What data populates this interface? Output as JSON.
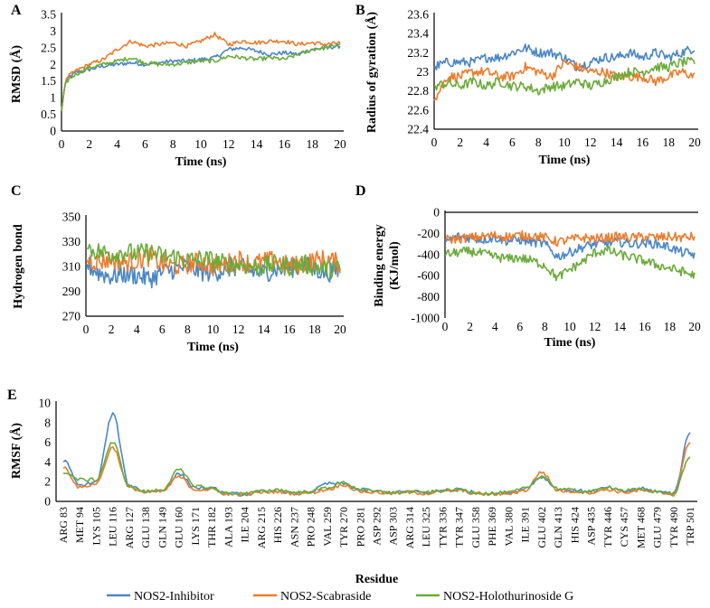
{
  "legend": {
    "entries": [
      {
        "label": "NOS2-Inhibitor",
        "color": "#4a86c8"
      },
      {
        "label": "NOS2-Scabraside",
        "color": "#ef7b2a"
      },
      {
        "label": "NOS2-Holothurinoside G",
        "color": "#6bab3a"
      }
    ]
  },
  "chart_data": [
    {
      "panel": "A",
      "type": "line",
      "xlabel": "Time (ns)",
      "ylabel": "RMSD (Å)",
      "xlim": [
        0,
        20
      ],
      "ylim": [
        0,
        3.5
      ],
      "xticks": [
        "0",
        "2",
        "4",
        "6",
        "8",
        "10",
        "12",
        "14",
        "16",
        "18",
        "20"
      ],
      "yticks": [
        "0",
        "0.5",
        "1",
        "1.5",
        "2",
        "2.5",
        "3",
        "3.5"
      ],
      "grid": false,
      "x": [
        0,
        0.25,
        0.5,
        1,
        1.5,
        2,
        3,
        4,
        5,
        6,
        7,
        8,
        9,
        10,
        11,
        12,
        13,
        14,
        15,
        16,
        17,
        18,
        19,
        20
      ],
      "series": [
        {
          "name": "NOS2-Inhibitor",
          "values": [
            0.6,
            1.4,
            1.6,
            1.75,
            1.8,
            1.85,
            1.95,
            2.0,
            2.05,
            2.0,
            2.05,
            2.1,
            2.1,
            2.15,
            2.2,
            2.45,
            2.5,
            2.4,
            2.3,
            2.35,
            2.3,
            2.45,
            2.5,
            2.55
          ]
        },
        {
          "name": "NOS2-Scabraside",
          "values": [
            0.6,
            1.45,
            1.65,
            1.8,
            1.9,
            2.0,
            2.15,
            2.45,
            2.7,
            2.55,
            2.6,
            2.65,
            2.55,
            2.7,
            2.9,
            2.6,
            2.7,
            2.65,
            2.7,
            2.7,
            2.6,
            2.65,
            2.6,
            2.65
          ]
        },
        {
          "name": "NOS2-Holothurinoside G",
          "values": [
            0.6,
            1.35,
            1.55,
            1.7,
            1.8,
            1.9,
            2.0,
            2.1,
            2.2,
            2.05,
            2.0,
            2.0,
            2.05,
            2.1,
            2.1,
            2.25,
            2.2,
            2.15,
            2.2,
            2.15,
            2.3,
            2.45,
            2.5,
            2.6
          ]
        }
      ]
    },
    {
      "panel": "B",
      "type": "line",
      "xlabel": "Time (ns)",
      "ylabel": "Radius of gyration (Å)",
      "xlim": [
        0,
        20
      ],
      "ylim": [
        22.4,
        23.6
      ],
      "xticks": [
        "0",
        "2",
        "4",
        "6",
        "8",
        "10",
        "12",
        "14",
        "16",
        "18",
        "20"
      ],
      "yticks": [
        "22.4",
        "22.6",
        "22.8",
        "23",
        "23.2",
        "23.4",
        "23.6"
      ],
      "grid": false,
      "x": [
        0,
        1,
        2,
        3,
        4,
        5,
        6,
        7,
        8,
        9,
        10,
        11,
        12,
        13,
        14,
        15,
        16,
        17,
        18,
        19,
        20
      ],
      "series": [
        {
          "name": "NOS2-Inhibitor",
          "values": [
            23.05,
            23.1,
            23.1,
            23.1,
            23.15,
            23.15,
            23.2,
            23.25,
            23.2,
            23.2,
            23.15,
            23.05,
            23.1,
            23.15,
            23.15,
            23.2,
            23.15,
            23.2,
            23.15,
            23.2,
            23.25
          ]
        },
        {
          "name": "NOS2-Scabraside",
          "values": [
            22.7,
            22.95,
            22.95,
            23.0,
            23.0,
            22.95,
            22.95,
            23.05,
            23.0,
            22.95,
            23.1,
            23.05,
            23.0,
            23.0,
            22.95,
            22.95,
            22.95,
            22.9,
            22.95,
            23.0,
            22.95
          ]
        },
        {
          "name": "NOS2-Holothurinoside G",
          "values": [
            22.85,
            22.88,
            22.85,
            22.9,
            22.85,
            22.9,
            22.85,
            22.85,
            22.8,
            22.85,
            22.85,
            22.9,
            22.85,
            22.9,
            22.95,
            23.0,
            23.0,
            23.05,
            23.05,
            23.1,
            23.1
          ]
        }
      ]
    },
    {
      "panel": "C",
      "type": "line",
      "xlabel": "Time (ns)",
      "ylabel": "Hydrogen bond",
      "xlim": [
        0,
        20
      ],
      "ylim": [
        270,
        350
      ],
      "xticks": [
        "0",
        "2",
        "4",
        "6",
        "8",
        "10",
        "12",
        "14",
        "16",
        "18",
        "20"
      ],
      "yticks": [
        "270",
        "290",
        "310",
        "330",
        "350"
      ],
      "grid": false,
      "x": [
        0,
        1,
        2,
        3,
        4,
        5,
        6,
        7,
        8,
        9,
        10,
        11,
        12,
        13,
        14,
        15,
        16,
        17,
        18,
        19,
        20
      ],
      "series": [
        {
          "name": "NOS2-Inhibitor",
          "values": [
            312,
            305,
            302,
            304,
            303,
            300,
            305,
            308,
            310,
            306,
            305,
            308,
            310,
            306,
            305,
            308,
            308,
            312,
            308,
            305,
            308
          ]
        },
        {
          "name": "NOS2-Scabraside",
          "values": [
            315,
            314,
            316,
            313,
            315,
            318,
            312,
            310,
            312,
            314,
            310,
            312,
            316,
            312,
            314,
            315,
            310,
            312,
            315,
            316,
            312
          ]
        },
        {
          "name": "NOS2-Holothurinoside G",
          "values": [
            325,
            322,
            320,
            322,
            320,
            322,
            318,
            318,
            315,
            316,
            315,
            312,
            312,
            310,
            310,
            312,
            310,
            312,
            310,
            308,
            308
          ]
        }
      ]
    },
    {
      "panel": "D",
      "type": "line",
      "xlabel": "Time (ns)",
      "ylabel": "Binding energy (KJ/mol)",
      "xlim": [
        0,
        20
      ],
      "ylim": [
        -1000,
        0
      ],
      "xticks": [
        "0",
        "2",
        "4",
        "6",
        "8",
        "10",
        "12",
        "14",
        "16",
        "18",
        "20"
      ],
      "yticks": [
        "-1000",
        "-800",
        "-600",
        "-400",
        "-200",
        "0"
      ],
      "grid": false,
      "x": [
        0,
        1,
        2,
        3,
        4,
        5,
        6,
        7,
        8,
        9,
        10,
        11,
        12,
        13,
        14,
        15,
        16,
        17,
        18,
        19,
        20
      ],
      "series": [
        {
          "name": "NOS2-Inhibitor",
          "values": [
            -280,
            -230,
            -240,
            -260,
            -240,
            -270,
            -260,
            -280,
            -300,
            -420,
            -380,
            -330,
            -300,
            -290,
            -280,
            -300,
            -290,
            -300,
            -330,
            -380,
            -400
          ]
        },
        {
          "name": "NOS2-Scabraside",
          "values": [
            -260,
            -250,
            -240,
            -230,
            -220,
            -230,
            -220,
            -220,
            -240,
            -280,
            -260,
            -240,
            -250,
            -240,
            -230,
            -240,
            -230,
            -240,
            -230,
            -240,
            -230
          ]
        },
        {
          "name": "NOS2-Holothurinoside G",
          "values": [
            -400,
            -380,
            -370,
            -390,
            -420,
            -440,
            -430,
            -460,
            -500,
            -620,
            -540,
            -470,
            -380,
            -360,
            -400,
            -430,
            -460,
            -500,
            -530,
            -560,
            -600
          ]
        }
      ]
    },
    {
      "panel": "E",
      "type": "line",
      "xlabel": "Residue",
      "ylabel": "RMSF (Å)",
      "ylim": [
        0,
        10
      ],
      "yticks": [
        "0",
        "2",
        "4",
        "6",
        "8",
        "10"
      ],
      "grid": false,
      "categories": [
        "ARG 83",
        "MET 94",
        "LYS 105",
        "LEU 116",
        "ARG 127",
        "GLU 138",
        "GLN 149",
        "GLU 160",
        "LYS 171",
        "THR 182",
        "ALA 193",
        "ILE 204",
        "ARG 215",
        "HIS 226",
        "ASN 237",
        "PRO 248",
        "VAL 259",
        "TYR 270",
        "PRO 281",
        "ASP 292",
        "ASP 303",
        "ARG 314",
        "LEU 325",
        "TYR 336",
        "TYR 347",
        "GLU 358",
        "PHE 369",
        "VAL 380",
        "ILE 391",
        "GLU 402",
        "GLN 413",
        "HIS 424",
        "ASP 435",
        "TYR 446",
        "CYS 457",
        "MET 468",
        "GLU 479",
        "TYR 490",
        "TRP 501"
      ],
      "series": [
        {
          "name": "NOS2-Inhibitor",
          "values": [
            4.2,
            1.6,
            2.0,
            8.9,
            1.6,
            1.0,
            1.1,
            2.8,
            1.4,
            1.3,
            0.8,
            0.7,
            1.0,
            1.1,
            0.8,
            1.0,
            1.8,
            1.8,
            1.2,
            1.0,
            0.9,
            1.0,
            0.9,
            1.1,
            1.2,
            0.9,
            0.8,
            0.9,
            1.3,
            2.5,
            1.2,
            1.1,
            1.0,
            1.4,
            1.0,
            1.3,
            1.0,
            0.8,
            7.0
          ]
        },
        {
          "name": "NOS2-Scabraside",
          "values": [
            3.5,
            1.4,
            1.8,
            5.5,
            1.4,
            0.9,
            1.0,
            2.5,
            1.2,
            1.2,
            0.7,
            0.7,
            0.9,
            1.0,
            0.8,
            0.9,
            1.2,
            1.7,
            1.0,
            0.9,
            0.8,
            0.9,
            0.8,
            1.0,
            1.1,
            0.8,
            0.7,
            0.8,
            1.1,
            3.0,
            1.1,
            1.0,
            0.9,
            1.2,
            0.9,
            1.1,
            0.9,
            0.7,
            6.0
          ]
        },
        {
          "name": "NOS2-Holothurinoside G",
          "values": [
            3.0,
            2.2,
            2.2,
            6.0,
            1.5,
            1.0,
            1.2,
            3.2,
            1.6,
            1.3,
            0.8,
            0.8,
            1.0,
            1.2,
            0.9,
            1.0,
            1.4,
            1.9,
            1.2,
            1.0,
            0.9,
            1.0,
            0.9,
            1.1,
            1.2,
            0.9,
            0.8,
            0.9,
            1.3,
            2.6,
            1.3,
            1.1,
            1.0,
            1.5,
            1.1,
            1.2,
            1.0,
            0.8,
            4.5
          ]
        }
      ]
    }
  ]
}
